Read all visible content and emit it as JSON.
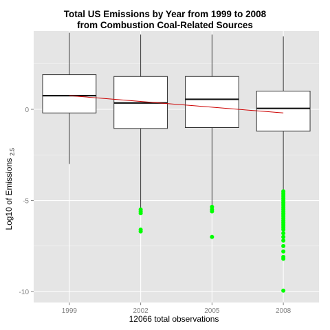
{
  "chart_data": {
    "type": "box",
    "title_lines": [
      "Total US Emissions by Year from 1999 to 2008",
      "from Combustion Coal-Related Sources"
    ],
    "xlabel": "12066 total observations",
    "ylabel": {
      "text": "Log10 of Emissions",
      "subscript": "2.5"
    },
    "categories": [
      "1999",
      "2002",
      "2005",
      "2008"
    ],
    "y_ticks": [
      0,
      -5,
      -10
    ],
    "y_tick_labels": [
      "0",
      "-5",
      "-10"
    ],
    "ylim": [
      -10.6,
      4.3
    ],
    "grid": true,
    "boxes": [
      {
        "category": "1999",
        "whisker_low": -3.0,
        "q1": -0.2,
        "median": 0.75,
        "q3": 1.9,
        "whisker_high": 4.2,
        "outliers": []
      },
      {
        "category": "2002",
        "whisker_low": -5.4,
        "q1": -1.05,
        "median": 0.35,
        "q3": 1.8,
        "whisker_high": 4.1,
        "outliers": [
          -5.5,
          -5.6,
          -5.7,
          -6.6,
          -6.7
        ]
      },
      {
        "category": "2005",
        "whisker_low": -5.3,
        "q1": -1.0,
        "median": 0.55,
        "q3": 1.8,
        "whisker_high": 4.1,
        "outliers": [
          -5.35,
          -5.5,
          -5.6,
          -7.0
        ]
      },
      {
        "category": "2008",
        "whisker_low": -4.4,
        "q1": -1.2,
        "median": 0.05,
        "q3": 1.0,
        "whisker_high": 4.0,
        "outliers": [
          -4.5,
          -4.6,
          -4.7,
          -4.8,
          -4.9,
          -5.0,
          -5.1,
          -5.2,
          -5.3,
          -5.4,
          -5.5,
          -5.6,
          -5.7,
          -5.8,
          -5.9,
          -6.0,
          -6.1,
          -6.2,
          -6.3,
          -6.4,
          -6.5,
          -6.6,
          -6.8,
          -7.0,
          -7.2,
          -7.5,
          -7.8,
          -8.1,
          -8.2,
          -9.95
        ]
      }
    ],
    "trend_line": {
      "start": {
        "category": "1999",
        "y": 0.75
      },
      "end": {
        "category": "2008",
        "y": -0.2
      }
    },
    "colors": {
      "panel": "#e5e5e5",
      "grid": "#ffffff",
      "box_fill": "#ffffff",
      "box_stroke": "#333333",
      "outlier": "#00ff00",
      "trend": "#cc0000",
      "tick_text": "#7f7f7f"
    }
  }
}
